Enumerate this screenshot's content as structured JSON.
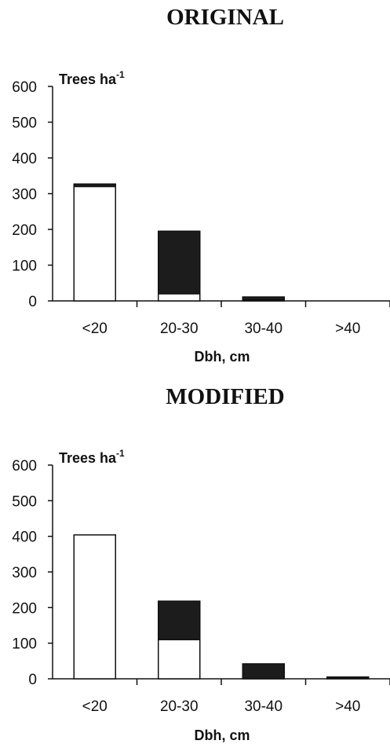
{
  "chart_data": [
    {
      "type": "bar",
      "stacked": true,
      "title": "ORIGINAL",
      "xlabel": "Dbh, cm",
      "ylabel": "Trees ha",
      "ylabel_superscript": "-1",
      "categories": [
        "<20",
        "20-30",
        "30-40",
        ">40"
      ],
      "ylim": [
        0,
        600
      ],
      "yticks": [
        "0",
        "100",
        "200",
        "300",
        "400",
        "500",
        "600"
      ],
      "series": [
        {
          "values": [
            320,
            20,
            3,
            0
          ],
          "color": "#ffffff"
        },
        {
          "values": [
            7,
            175,
            8,
            0
          ],
          "color": "#1c1c1c"
        }
      ]
    },
    {
      "type": "bar",
      "stacked": true,
      "title": "MODIFIED",
      "xlabel": "Dbh, cm",
      "ylabel": "Trees ha",
      "ylabel_superscript": "-1",
      "categories": [
        "<20",
        "20-30",
        "30-40",
        ">40"
      ],
      "ylim": [
        0,
        600
      ],
      "yticks": [
        "0",
        "100",
        "200",
        "300",
        "400",
        "500",
        "600"
      ],
      "series": [
        {
          "values": [
            404,
            110,
            0,
            0
          ],
          "color": "#ffffff"
        },
        {
          "values": [
            0,
            108,
            42,
            5
          ],
          "color": "#1c1c1c"
        }
      ]
    }
  ]
}
